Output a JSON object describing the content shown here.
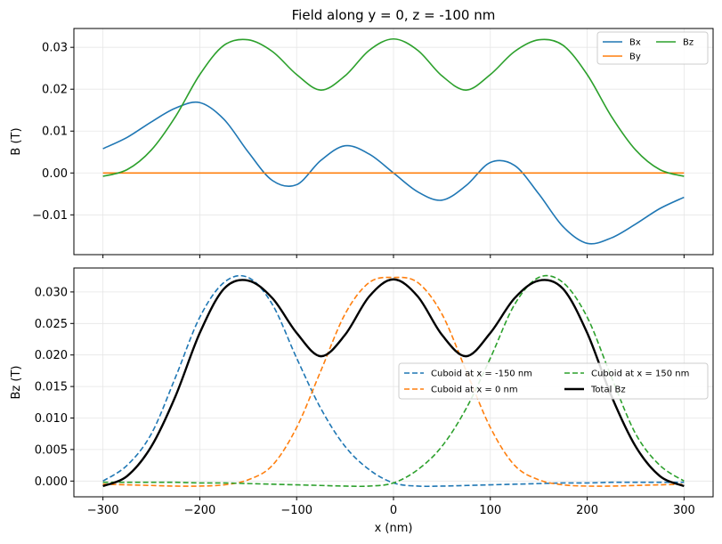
{
  "chart_data": [
    {
      "type": "line",
      "title": "Field along y = 0, z = -100 nm",
      "xlabel": "",
      "ylabel": "B (T)",
      "xlim": [
        -330,
        330
      ],
      "ylim": [
        -0.0195,
        0.0345
      ],
      "xticks": [
        -300,
        -200,
        -100,
        0,
        100,
        200,
        300
      ],
      "yticks": [
        -0.01,
        0.0,
        0.01,
        0.02,
        0.03
      ],
      "ytick_labels": [
        "−0.01",
        "0.00",
        "0.01",
        "0.02",
        "0.03"
      ],
      "grid": true,
      "legend": {
        "placement": "upper-right",
        "columns": 2
      },
      "x": [
        -300,
        -275,
        -250,
        -225,
        -200,
        -175,
        -150,
        -125,
        -100,
        -75,
        -50,
        -25,
        0,
        25,
        50,
        75,
        100,
        125,
        150,
        175,
        200,
        225,
        250,
        275,
        300
      ],
      "series": [
        {
          "name": "Bx",
          "color": "#1f77b4",
          "dashed": false,
          "width": 1.6,
          "values": [
            0.0058,
            0.0085,
            0.0122,
            0.0155,
            0.0168,
            0.0128,
            0.005,
            -0.0018,
            -0.0028,
            0.003,
            0.0065,
            0.0045,
            0.0,
            -0.0045,
            -0.0065,
            -0.003,
            0.0025,
            0.0018,
            -0.005,
            -0.0128,
            -0.0168,
            -0.0155,
            -0.0122,
            -0.0085,
            -0.0058
          ]
        },
        {
          "name": "By",
          "color": "#ff7f0e",
          "dashed": false,
          "width": 1.6,
          "values": [
            0.0,
            0.0,
            0.0,
            0.0,
            0.0,
            0.0,
            0.0,
            0.0,
            0.0,
            0.0,
            0.0,
            0.0,
            0.0,
            0.0,
            0.0,
            0.0,
            0.0,
            0.0,
            0.0,
            0.0,
            0.0,
            0.0,
            0.0,
            0.0,
            0.0
          ]
        },
        {
          "name": "Bz",
          "color": "#2ca02c",
          "dashed": false,
          "width": 1.6,
          "values": [
            -0.0008,
            0.0008,
            0.0055,
            0.0135,
            0.0235,
            0.0305,
            0.0318,
            0.029,
            0.0235,
            0.0198,
            0.0232,
            0.0293,
            0.032,
            0.0293,
            0.0232,
            0.0198,
            0.0235,
            0.029,
            0.0318,
            0.0305,
            0.0235,
            0.0135,
            0.0055,
            0.0008,
            -0.0008
          ]
        }
      ]
    },
    {
      "type": "line",
      "title": "",
      "xlabel": "x (nm)",
      "ylabel": "Bz (T)",
      "xlim": [
        -330,
        330
      ],
      "ylim": [
        -0.0025,
        0.0338
      ],
      "xticks": [
        -300,
        -200,
        -100,
        0,
        100,
        200,
        300
      ],
      "xtick_labels": [
        "−300",
        "−200",
        "−100",
        "0",
        "100",
        "200",
        "300"
      ],
      "yticks": [
        0.0,
        0.005,
        0.01,
        0.015,
        0.02,
        0.025,
        0.03
      ],
      "ytick_labels": [
        "0.000",
        "0.005",
        "0.010",
        "0.015",
        "0.020",
        "0.025",
        "0.030"
      ],
      "grid": true,
      "legend": {
        "placement": "center-right",
        "columns": 2
      },
      "x": [
        -300,
        -275,
        -250,
        -225,
        -200,
        -175,
        -150,
        -125,
        -100,
        -75,
        -50,
        -25,
        0,
        25,
        50,
        75,
        100,
        125,
        150,
        175,
        200,
        225,
        250,
        275,
        300
      ],
      "series": [
        {
          "name": "Cuboid at x = -150 nm",
          "color": "#1f77b4",
          "dashed": true,
          "width": 1.6,
          "values": [
            0.0,
            0.0025,
            0.0075,
            0.0165,
            0.026,
            0.0315,
            0.0323,
            0.028,
            0.0195,
            0.0115,
            0.0055,
            0.0018,
            -0.0003,
            -0.0008,
            -0.0008,
            -0.0007,
            -0.0006,
            -0.0005,
            -0.0004,
            -0.0003,
            -0.0003,
            -0.0002,
            -0.0002,
            -0.0002,
            -0.0002
          ]
        },
        {
          "name": "Cuboid at x = 0 nm",
          "color": "#ff7f0e",
          "dashed": true,
          "width": 1.6,
          "values": [
            -0.0005,
            -0.0006,
            -0.0007,
            -0.0008,
            -0.0008,
            -0.0006,
            0.0002,
            0.0025,
            0.0085,
            0.0175,
            0.0265,
            0.0315,
            0.0323,
            0.0315,
            0.0265,
            0.0175,
            0.0085,
            0.0025,
            0.0002,
            -0.0006,
            -0.0008,
            -0.0008,
            -0.0007,
            -0.0006,
            -0.0005
          ]
        },
        {
          "name": "Cuboid at x = 150 nm",
          "color": "#2ca02c",
          "dashed": true,
          "width": 1.6,
          "values": [
            -0.0002,
            -0.0002,
            -0.0002,
            -0.0002,
            -0.0003,
            -0.0003,
            -0.0004,
            -0.0005,
            -0.0006,
            -0.0007,
            -0.0008,
            -0.0008,
            -0.0003,
            0.0018,
            0.0055,
            0.0115,
            0.0195,
            0.028,
            0.0323,
            0.0315,
            0.026,
            0.0165,
            0.0075,
            0.0025,
            0.0
          ]
        },
        {
          "name": "Total Bz",
          "color": "#000000",
          "dashed": false,
          "width": 2.4,
          "values": [
            -0.0008,
            0.0008,
            0.0055,
            0.0135,
            0.0235,
            0.0305,
            0.0318,
            0.029,
            0.0235,
            0.0198,
            0.0232,
            0.0293,
            0.032,
            0.0293,
            0.0232,
            0.0198,
            0.0235,
            0.029,
            0.0318,
            0.0305,
            0.0235,
            0.0135,
            0.0055,
            0.0008,
            -0.0008
          ]
        }
      ]
    }
  ]
}
